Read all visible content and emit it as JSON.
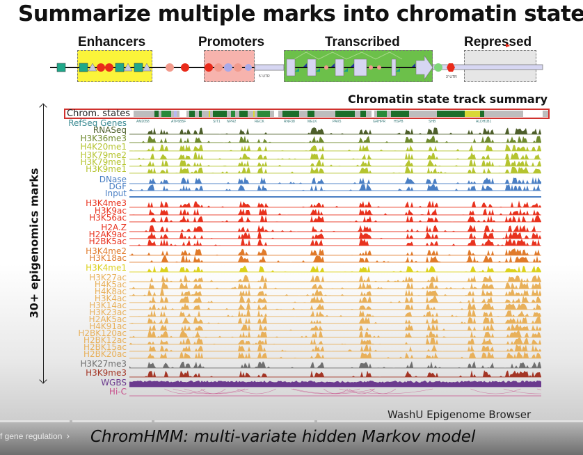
{
  "slide": {
    "title": "Summarize multiple marks into chromatin states",
    "diagram": {
      "regions": [
        {
          "label": "Enhancers",
          "color": "#fbf43a"
        },
        {
          "label": "Promoters",
          "color": "#f7b3ad"
        },
        {
          "label": "Transcribed",
          "color": "#6cc04a"
        },
        {
          "label": "Repressed",
          "color": "#e6e6e6"
        }
      ],
      "utr5_label": "5'-UTR",
      "utr3_label": "3'-UTR"
    },
    "summary_label": "Chromatin state track summary",
    "axis_label": "30+ epigenomics marks",
    "source_label": "WashU Epigenome Browser"
  },
  "browser": {
    "chrom_states_label": "Chrom. states",
    "genes_label": "RefSeq Genes",
    "gene_names": [
      "AM2058",
      "ATP6B5F",
      "SIT1",
      "NPR2",
      "RECK",
      "RNF38",
      "MELK",
      "PAX5",
      "GRHPR",
      "HSPB",
      "SHB",
      "ALDH1B1"
    ],
    "tracks": [
      {
        "name": "RNASeq",
        "color": "#4d5e2a"
      },
      {
        "name": "H3K36me3",
        "color": "#6f8a2e"
      },
      {
        "name": "H4K20me1",
        "color": "#b5c430"
      },
      {
        "name": "H3K79me2",
        "color": "#b5c430"
      },
      {
        "name": "H3K79me1",
        "color": "#b5c430"
      },
      {
        "name": "H3K9me1",
        "color": "#b5c430"
      },
      {
        "name": "DNase",
        "color": "#4a7fc4"
      },
      {
        "name": "DGF",
        "color": "#4a7fc4"
      },
      {
        "name": "Input",
        "color": "#4a7fc4"
      },
      {
        "name": "H3K4me3",
        "color": "#e8321e"
      },
      {
        "name": "H3K9ac",
        "color": "#e8321e"
      },
      {
        "name": "H3K56ac",
        "color": "#e8321e"
      },
      {
        "name": "H2A.Z",
        "color": "#e8321e"
      },
      {
        "name": "H2AK9ac",
        "color": "#e8321e"
      },
      {
        "name": "H2BK5ac",
        "color": "#e8321e"
      },
      {
        "name": "H3K4me2",
        "color": "#e07a2a"
      },
      {
        "name": "H3K18ac",
        "color": "#e07a2a"
      },
      {
        "name": "H3K4me1",
        "color": "#dcd21e"
      },
      {
        "name": "H3K27ac",
        "color": "#e8b05a"
      },
      {
        "name": "H4K5ac",
        "color": "#e8b05a"
      },
      {
        "name": "H4K8ac",
        "color": "#e8b05a"
      },
      {
        "name": "H3K4ac",
        "color": "#e8b05a"
      },
      {
        "name": "H3K14ac",
        "color": "#e8b05a"
      },
      {
        "name": "H3K23ac",
        "color": "#e8b05a"
      },
      {
        "name": "H2AK5ac",
        "color": "#e8b05a"
      },
      {
        "name": "H4K91ac",
        "color": "#e8b05a"
      },
      {
        "name": "H2BK120ac",
        "color": "#e8b05a"
      },
      {
        "name": "H2BK12ac",
        "color": "#e8b05a"
      },
      {
        "name": "H2BK15ac",
        "color": "#e8b05a"
      },
      {
        "name": "H2BK20ac",
        "color": "#e8b05a"
      },
      {
        "name": "H3K27me3",
        "color": "#6f6f6f"
      },
      {
        "name": "H3K9me3",
        "color": "#a33525"
      },
      {
        "name": "WGBS",
        "color": "#6b3a8e"
      },
      {
        "name": "Hi-C",
        "color": "#c8508c"
      }
    ]
  },
  "player": {
    "chapter_label": "f gene regulation",
    "chapter_chevron": "›",
    "subtitle": "ChromHMM: multi-variate hidden Markov model",
    "progress_segments": [
      [
        0,
        100
      ],
      [
        104,
        218
      ],
      [
        222,
        452
      ],
      [
        456,
        838
      ]
    ]
  }
}
